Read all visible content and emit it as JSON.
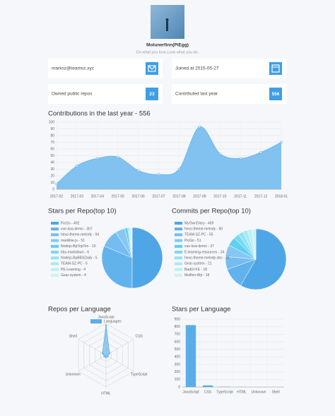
{
  "profile": {
    "name": "Molunerfinn(PiEgg)",
    "bio": "Do what you love,Love what you do."
  },
  "cards": [
    {
      "label": "marksz@teamsz.xyz"
    },
    {
      "label": "Joined at 2015-05-27"
    },
    {
      "label": "Owned public repos",
      "value": 23
    },
    {
      "label": "Contributed last year",
      "value": 556
    }
  ],
  "chart_data": [
    {
      "type": "area",
      "title": "Contributions in the last year - 556",
      "categories": [
        "2017-02",
        "2017-03",
        "2017-04",
        "2017-05",
        "2017-06",
        "2017-07",
        "2017-08",
        "2017-09",
        "2017-10",
        "2017-11",
        "2017-12",
        "2018-01"
      ],
      "values": [
        8,
        35,
        46,
        48,
        28,
        22,
        30,
        93,
        53,
        46,
        55,
        70
      ],
      "color": "#6cb8ee",
      "ylim": [
        0,
        100
      ],
      "yticks": [
        0,
        10,
        20,
        30,
        40,
        50,
        60,
        70,
        80,
        90,
        100
      ],
      "grid": true
    },
    {
      "type": "pie",
      "title": "Stars per Repo(top 10)",
      "labels": [
        "PicGo - 492",
        "vue-koa-demo - 307",
        "hexo-theme-melody - 94",
        "markline.js - 51",
        "Nodejs-BpTopTen - 15",
        "bbs-markdown - 6",
        "Nodejs-BpBBSDaily - 5",
        "TEAM-SZ-PC - 5",
        "PE-Learning - 4",
        "Gear-system - 4"
      ],
      "values": [
        492,
        307,
        94,
        51,
        15,
        6,
        5,
        5,
        4,
        4
      ],
      "colors": [
        "#4fa6e6",
        "#62b2ec",
        "#74bdf0",
        "#86c8f3",
        "#5ed0f0",
        "#78daf2",
        "#92e2f4",
        "#a9e9f4",
        "#bdeff2",
        "#cdf3ef"
      ]
    },
    {
      "type": "pie",
      "title": "Commits per Repo(top 10)",
      "labels": [
        "MyOwnDiary - 469",
        "hexo-theme-melody - 90",
        "TEAM-SZ-PC - 55",
        "PicGo - 51",
        "vue-koa-demo - 37",
        "E-learning-resources - 24",
        "hexo-theme-melody-doc - 21",
        "Gear-system - 21",
        "BadUI-FE - 18",
        "Molfinn-Wp - 18"
      ],
      "values": [
        469,
        90,
        55,
        51,
        37,
        24,
        21,
        21,
        18,
        18
      ],
      "colors": [
        "#4fa6e6",
        "#62b2ec",
        "#74bdf0",
        "#86c8f3",
        "#5ed0f0",
        "#78daf2",
        "#92e2f4",
        "#a9e9f4",
        "#bdeff2",
        "#cdf3ef"
      ]
    },
    {
      "type": "radar",
      "title": "Repos per Language",
      "legend": "Languages",
      "categories": [
        "JavaScript",
        "CSS",
        "TypeScript",
        "HTML",
        "Unknown",
        "Shell"
      ],
      "values": [
        15,
        2,
        1,
        1,
        1,
        2
      ],
      "rlim": [
        0,
        16
      ],
      "color": "#5aaee8"
    },
    {
      "type": "bar",
      "title": "Stars per Language",
      "categories": [
        "JavaScript",
        "CSS",
        "TypeScript",
        "HTML",
        "Unknown",
        "Shell"
      ],
      "values": [
        822,
        22,
        4,
        2,
        0,
        0
      ],
      "color": "#5aaee8",
      "ylim": [
        0,
        900
      ],
      "yticks": [
        0,
        100,
        200,
        300,
        400,
        500,
        600,
        700,
        800,
        900
      ],
      "grid": true
    }
  ]
}
